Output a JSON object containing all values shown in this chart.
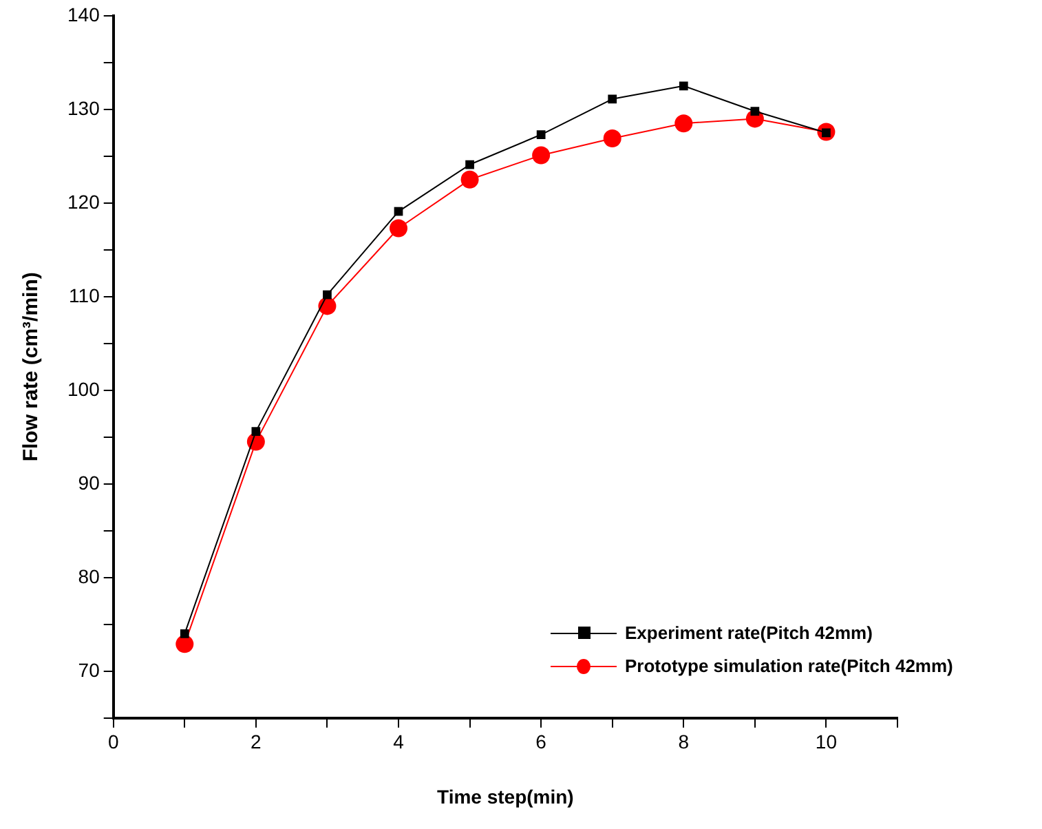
{
  "chart_data": {
    "type": "line",
    "xlabel": "Time step(min)",
    "ylabel": "Flow rate (cm³/min)",
    "x": [
      1,
      2,
      3,
      4,
      5,
      6,
      7,
      8,
      9,
      10
    ],
    "series": [
      {
        "name": "Experiment rate(Pitch 42mm)",
        "color": "#000000",
        "marker": "square",
        "values": [
          74,
          95.6,
          110.2,
          119.1,
          124.1,
          127.3,
          131.1,
          132.5,
          129.8,
          127.5
        ]
      },
      {
        "name": "Prototype simulation rate(Pitch 42mm)",
        "color": "#ff0000",
        "marker": "circle",
        "values": [
          72.9,
          94.5,
          109,
          117.3,
          122.5,
          125.1,
          126.9,
          128.5,
          129,
          127.6
        ]
      }
    ],
    "xlim": [
      0,
      11
    ],
    "xticks": [
      0,
      {
        "value": 1,
        "label": null
      },
      2,
      {
        "value": 3,
        "label": null
      },
      4,
      {
        "value": 5,
        "label": null
      },
      6,
      {
        "value": 7,
        "label": null
      },
      8,
      {
        "value": 9,
        "label": null
      },
      10,
      {
        "value": 11,
        "label": null
      }
    ],
    "ylim": [
      65,
      140
    ],
    "yticks": [
      {
        "value": 65,
        "label": null
      },
      70,
      {
        "value": 75,
        "label": null
      },
      80,
      {
        "value": 85,
        "label": null
      },
      90,
      {
        "value": 95,
        "label": null
      },
      100,
      {
        "value": 105,
        "label": null
      },
      110,
      {
        "value": 115,
        "label": null
      },
      120,
      {
        "value": 125,
        "label": null
      },
      130,
      {
        "value": 135,
        "label": null
      },
      140
    ],
    "grid": false,
    "legend": "bottom right",
    "line_style": "solid"
  }
}
